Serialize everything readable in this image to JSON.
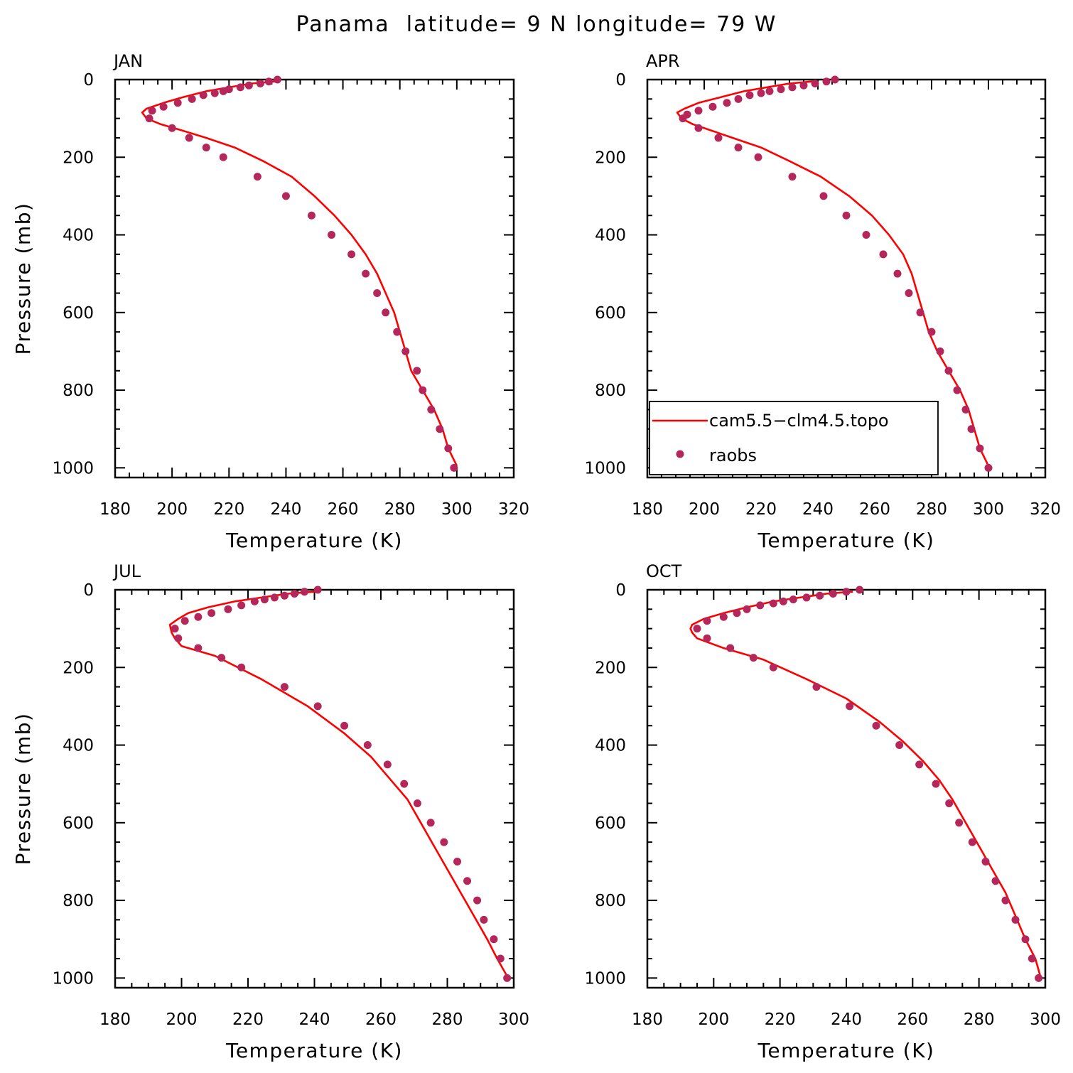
{
  "figure_title": "Panama  latitude= 9 N longitude= 79 W",
  "colors": {
    "model_line": "#ff0000",
    "obs_dots": "#b5265a",
    "axes": "#000000"
  },
  "legend": {
    "panel": "APR",
    "placement": "bottom-left",
    "model_label": "cam5.5−clm4.5.topo",
    "obs_label": "raobs"
  },
  "chart_data": [
    {
      "type": "line",
      "panel_label": "JAN",
      "xlabel": "Temperature (K)",
      "ylabel": "Pressure (mb)",
      "xlim": [
        180,
        320
      ],
      "ylim": [
        0,
        1025
      ],
      "y_inverted": true,
      "xticks": [
        "180",
        "200",
        "220",
        "240",
        "260",
        "280",
        "300",
        "320"
      ],
      "yticks": [
        "0",
        "200",
        "400",
        "600",
        "800",
        "1000"
      ],
      "series": [
        {
          "name": "cam5.5−clm4.5.topo",
          "kind": "line",
          "temperature": [
            236,
            228,
            220,
            212,
            204,
            197,
            191,
            189.5,
            191,
            196,
            203,
            212,
            222,
            232,
            242,
            250,
            257,
            263,
            268,
            272,
            275,
            278,
            280,
            282,
            284,
            288,
            292,
            295,
            297,
            300
          ],
          "pressure": [
            5,
            10,
            20,
            30,
            45,
            60,
            75,
            85,
            100,
            115,
            130,
            150,
            175,
            210,
            250,
            300,
            350,
            400,
            450,
            500,
            550,
            600,
            650,
            700,
            750,
            800,
            850,
            900,
            950,
            995
          ]
        },
        {
          "name": "raobs",
          "kind": "scatter",
          "temperature": [
            237,
            234,
            231,
            227,
            224,
            220,
            218,
            215,
            211,
            207,
            202,
            197,
            193,
            192,
            200,
            206,
            212,
            218,
            230,
            240,
            249,
            256,
            263,
            268,
            272,
            275,
            279,
            282,
            286,
            288,
            291,
            294,
            297,
            299
          ],
          "pressure": [
            0,
            5,
            10,
            15,
            20,
            25,
            30,
            35,
            40,
            50,
            60,
            70,
            80,
            100,
            125,
            150,
            175,
            200,
            250,
            300,
            350,
            400,
            450,
            500,
            550,
            600,
            650,
            700,
            750,
            800,
            850,
            900,
            950,
            1000
          ]
        }
      ]
    },
    {
      "type": "line",
      "panel_label": "APR",
      "xlabel": "Temperature (K)",
      "ylabel": "",
      "xlim": [
        180,
        320
      ],
      "ylim": [
        0,
        1025
      ],
      "y_inverted": true,
      "xticks": [
        "180",
        "200",
        "220",
        "240",
        "260",
        "280",
        "300",
        "320"
      ],
      "yticks": [
        "0",
        "200",
        "400",
        "600",
        "800",
        "1000"
      ],
      "series": [
        {
          "name": "cam5.5−clm4.5.topo",
          "kind": "line",
          "temperature": [
            238,
            230,
            222,
            214,
            206,
            198,
            193,
            190.5,
            192,
            196,
            202,
            210,
            220,
            230,
            241,
            251,
            259,
            265,
            270,
            273,
            275,
            277,
            279,
            282,
            286,
            290,
            293,
            295,
            297,
            300
          ],
          "pressure": [
            5,
            10,
            20,
            30,
            45,
            60,
            75,
            85,
            100,
            115,
            130,
            150,
            175,
            210,
            250,
            300,
            350,
            400,
            450,
            500,
            550,
            600,
            650,
            700,
            750,
            800,
            850,
            900,
            950,
            995
          ]
        },
        {
          "name": "raobs",
          "kind": "scatter",
          "temperature": [
            246,
            243,
            239,
            235,
            231,
            227,
            223,
            220,
            216,
            212,
            208,
            203,
            198,
            194,
            192.5,
            198,
            205,
            212,
            219,
            231,
            242,
            250,
            257,
            263,
            268,
            272,
            276,
            280,
            283,
            286,
            289,
            292,
            294,
            297,
            300
          ],
          "pressure": [
            0,
            5,
            10,
            15,
            20,
            25,
            30,
            35,
            40,
            50,
            60,
            70,
            80,
            90,
            100,
            125,
            150,
            175,
            200,
            250,
            300,
            350,
            400,
            450,
            500,
            550,
            600,
            650,
            700,
            750,
            800,
            850,
            900,
            950,
            1000
          ]
        }
      ]
    },
    {
      "type": "line",
      "panel_label": "JUL",
      "xlabel": "Temperature (K)",
      "ylabel": "Pressure (mb)",
      "xlim": [
        180,
        300
      ],
      "ylim": [
        0,
        1025
      ],
      "y_inverted": true,
      "xticks": [
        "180",
        "200",
        "220",
        "240",
        "260",
        "280",
        "300"
      ],
      "yticks": [
        "0",
        "200",
        "400",
        "600",
        "800",
        "1000"
      ],
      "series": [
        {
          "name": "cam5.5−clm4.5.topo",
          "kind": "line",
          "temperature": [
            240,
            232,
            224,
            216,
            208,
            202,
            199,
            196.5,
            197,
            198,
            200,
            210,
            224,
            238,
            249,
            257,
            263,
            268,
            272,
            276,
            280,
            284,
            288,
            292,
            295,
            298
          ],
          "pressure": [
            5,
            10,
            20,
            30,
            45,
            60,
            75,
            90,
            110,
            125,
            145,
            170,
            230,
            300,
            370,
            430,
            490,
            540,
            600,
            660,
            720,
            780,
            840,
            900,
            950,
            995
          ]
        },
        {
          "name": "raobs",
          "kind": "scatter",
          "temperature": [
            241,
            237,
            234,
            231,
            228,
            225,
            222,
            218,
            214,
            209,
            205,
            201,
            198,
            199,
            205,
            212,
            218,
            231,
            241,
            249,
            256,
            262,
            267,
            271,
            275,
            279,
            283,
            286,
            289,
            291,
            294,
            296,
            298
          ],
          "pressure": [
            0,
            5,
            10,
            15,
            20,
            25,
            30,
            40,
            50,
            60,
            70,
            80,
            100,
            125,
            150,
            175,
            200,
            250,
            300,
            350,
            400,
            450,
            500,
            550,
            600,
            650,
            700,
            750,
            800,
            850,
            900,
            950,
            1000
          ]
        }
      ]
    },
    {
      "type": "line",
      "panel_label": "OCT",
      "xlabel": "Temperature (K)",
      "ylabel": "",
      "xlim": [
        180,
        300
      ],
      "ylim": [
        0,
        1025
      ],
      "y_inverted": true,
      "xticks": [
        "180",
        "200",
        "220",
        "240",
        "260",
        "280",
        "300"
      ],
      "yticks": [
        "0",
        "200",
        "400",
        "600",
        "800",
        "1000"
      ],
      "series": [
        {
          "name": "cam5.5−clm4.5.topo",
          "kind": "line",
          "temperature": [
            242,
            234,
            226,
            218,
            210,
            203,
            197,
            193.5,
            193,
            193.5,
            195,
            203,
            215,
            228,
            240,
            250,
            257,
            263,
            268,
            272,
            276,
            280,
            284,
            288,
            291,
            294,
            297,
            298.5
          ],
          "pressure": [
            5,
            10,
            20,
            30,
            45,
            60,
            75,
            90,
            100,
            110,
            125,
            150,
            180,
            230,
            280,
            340,
            390,
            440,
            490,
            540,
            600,
            660,
            720,
            780,
            840,
            900,
            950,
            995
          ]
        },
        {
          "name": "raobs",
          "kind": "scatter",
          "temperature": [
            244,
            240,
            236,
            232,
            228,
            224,
            221,
            218,
            214,
            210,
            207,
            203,
            198,
            195,
            198,
            205,
            212,
            218,
            231,
            241,
            249,
            256,
            262,
            267,
            271,
            274,
            278,
            282,
            285,
            288,
            291,
            294,
            296,
            298
          ],
          "pressure": [
            0,
            5,
            10,
            15,
            20,
            25,
            30,
            35,
            40,
            50,
            60,
            70,
            80,
            100,
            125,
            150,
            175,
            200,
            250,
            300,
            350,
            400,
            450,
            500,
            550,
            600,
            650,
            700,
            750,
            800,
            850,
            900,
            950,
            1000
          ]
        }
      ]
    }
  ]
}
